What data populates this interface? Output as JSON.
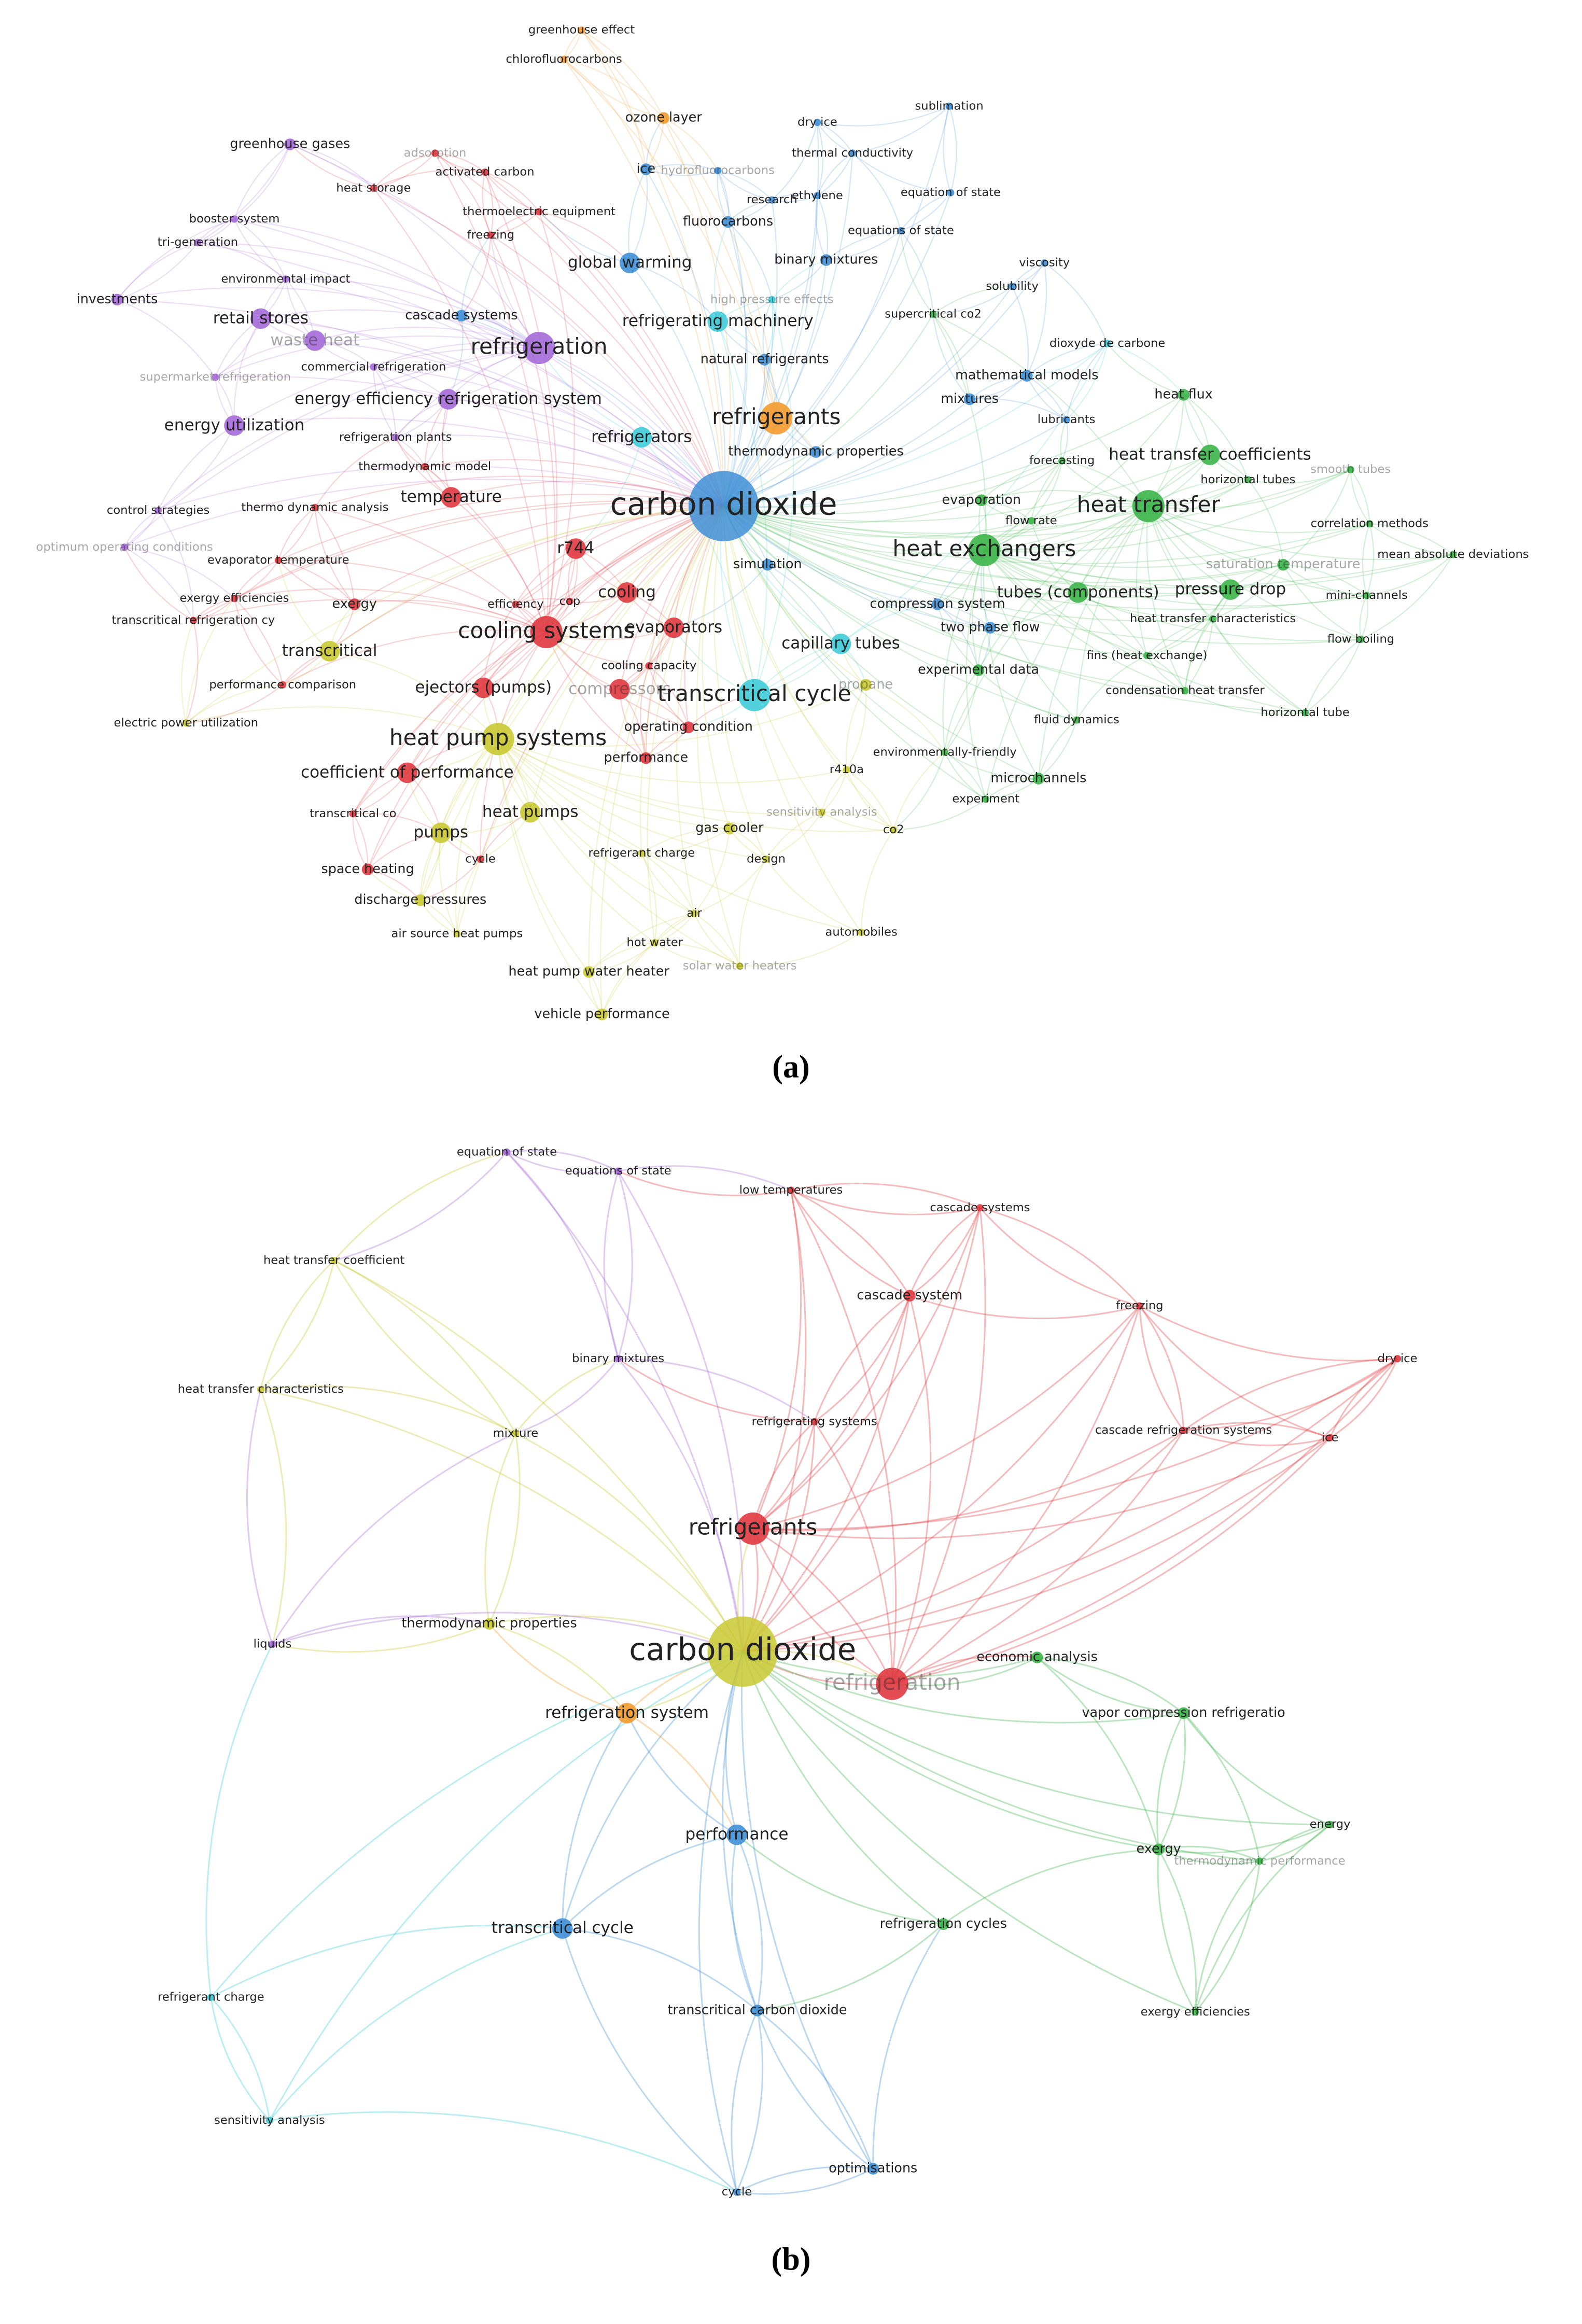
{
  "panels": [
    {
      "caption": "(a)",
      "nodes": [
        "greenhouse effect",
        "chlorofluorocarbons",
        "ozone layer",
        "dry ice",
        "sublimation",
        "greenhouse gases",
        "adsorption",
        "activated carbon",
        "ice",
        "hydrofluorocarbons",
        "thermal conductivity",
        "heat storage",
        "research",
        "ethylene",
        "equation of state",
        "thermoelectric equipment",
        "booster system",
        "freezing",
        "fluorocarbons",
        "equations of state",
        "tri-generation",
        "global warming",
        "binary mixtures",
        "viscosity",
        "environmental impact",
        "solubility",
        "investments",
        "retail stores",
        "cascade systems",
        "refrigerating machinery",
        "high pressure effects",
        "supercritical co2",
        "waste heat",
        "dioxyde de carbone",
        "refrigeration",
        "commercial refrigeration",
        "natural refrigerants",
        "supermarket refrigeration",
        "mathematical models",
        "heat flux",
        "energy efficiency refrigeration system",
        "mixtures",
        "refrigerants",
        "lubricants",
        "energy utilization",
        "refrigeration plants",
        "refrigerators",
        "thermodynamic properties",
        "forecasting",
        "heat transfer coefficients",
        "smooth tubes",
        "horizontal tubes",
        "thermodynamic model",
        "temperature",
        "carbon dioxide",
        "control strategies",
        "thermo dynamic analysis",
        "evaporation",
        "heat transfer",
        "flow rate",
        "correlation methods",
        "r744",
        "heat exchangers",
        "optimum operating conditions",
        "simulation",
        "evaporator temperature",
        "saturation temperature",
        "mean absolute deviations",
        "tubes (components)",
        "pressure drop",
        "cooling",
        "exergy efficiencies",
        "mini-channels",
        "compression system",
        "exergy",
        "efficiency",
        "cop",
        "transcritical refrigeration cy",
        "heat transfer characteristics",
        "cooling systems",
        "evaporators",
        "two phase flow",
        "flow boiling",
        "capillary tubes",
        "transcritical",
        "fins (heat exchange)",
        "cooling capacity",
        "experimental data",
        "performance comparison",
        "ejectors (pumps)",
        "compressors",
        "transcritical cycle",
        "condensation heat transfer",
        "propane",
        "electric power utilization",
        "fluid dynamics",
        "horizontal tube",
        "heat pump systems",
        "operating condition",
        "performance",
        "environmentally-friendly",
        "coefficient of performance",
        "r410a",
        "microchannels",
        "experiment",
        "transcritical co",
        "heat pumps",
        "sensitivity analysis",
        "pumps",
        "gas cooler",
        "co2",
        "cycle",
        "refrigerant charge",
        "design",
        "space heating",
        "discharge pressures",
        "air",
        "air source heat pumps",
        "hot water",
        "automobiles",
        "heat pump water heater",
        "solar water heaters",
        "vehicle performance"
      ]
    },
    {
      "caption": "(b)",
      "nodes": [
        "equation of state",
        "equations of state",
        "low temperatures",
        "cascade systems",
        "heat transfer coefficient",
        "cascade system",
        "freezing",
        "dry ice",
        "heat transfer characteristics",
        "binary mixtures",
        "mixture",
        "refrigerating systems",
        "cascade refrigeration systems",
        "ice",
        "refrigerants",
        "thermodynamic properties",
        "liquids",
        "carbon dioxide",
        "economic analysis",
        "refrigeration",
        "refrigeration system",
        "vapor compression refrigeratio",
        "performance",
        "energy",
        "exergy",
        "thermodynamic performance",
        "transcritical cycle",
        "refrigeration cycles",
        "refrigerant charge",
        "transcritical carbon dioxide",
        "exergy efficiencies",
        "sensitivity analysis",
        "optimisations",
        "cycle"
      ]
    }
  ]
}
